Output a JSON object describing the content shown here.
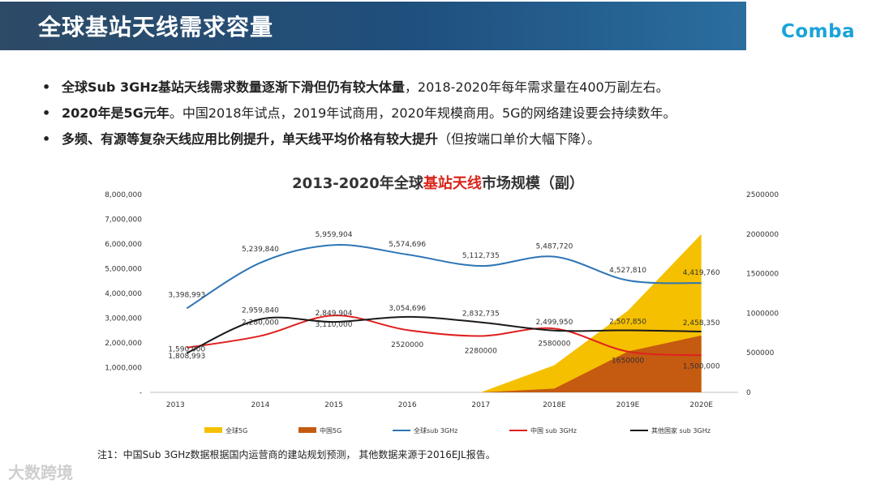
{
  "header": {
    "title": "全球基站天线需求容量",
    "logo": "Comba",
    "brand_color": "#1aa3d9"
  },
  "bullets": [
    {
      "bold": "全球Sub 3GHz基站天线需求数量逐渐下滑但仍有较大体量",
      "normal": "，2018-2020年每年需求量在400万副左右。"
    },
    {
      "bold": "2020年是5G元年",
      "normal": "。中国2018年试点，2019年试商用，2020年规模商用。5G的网络建设要会持续数年。"
    },
    {
      "bold": "多频、有源等复杂天线应用比例提升，单天线平均价格有较大提升",
      "normal": "（但按端口单价大幅下降）。"
    }
  ],
  "chart_title": {
    "pre": "2013-2020年全球",
    "highlight": "基站天线",
    "post": "市场规模（副）"
  },
  "chart_data": {
    "type": "line",
    "title": "2013-2020年全球基站天线市场规模（副）",
    "categories": [
      "2013",
      "2014",
      "2015",
      "2016",
      "2017",
      "2018E",
      "2019E",
      "2020E"
    ],
    "y_left": {
      "min": 0,
      "max": 8000000,
      "ticks": [
        "-",
        "1,000,000",
        "2,000,000",
        "3,000,000",
        "4,000,000",
        "5,000,000",
        "6,000,000",
        "7,000,000",
        "8,000,000"
      ]
    },
    "y_right": {
      "min": 0,
      "max": 2500000,
      "ticks": [
        "0",
        "500000",
        "1000000",
        "1500000",
        "2000000",
        "2500000"
      ]
    },
    "series": [
      {
        "name": "全球5G",
        "kind": "area",
        "axis": "left",
        "color": "#f5c000",
        "values": [
          null,
          null,
          null,
          null,
          0,
          1100000,
          3300000,
          6400000
        ]
      },
      {
        "name": "中国5G",
        "kind": "area",
        "axis": "left",
        "color": "#c55a11",
        "values": [
          null,
          null,
          null,
          null,
          0,
          150000,
          1650000,
          2300000
        ]
      },
      {
        "name": "全球sub 3GHz",
        "kind": "line",
        "axis": "left",
        "color": "#2e75b6",
        "values": [
          3398993,
          5239840,
          5959904,
          5574696,
          5112735,
          5487720,
          4527810,
          4419760
        ],
        "labels": [
          "3,398,993",
          "5,239,840",
          "5,959,904",
          "5,574,696",
          "5,112,735",
          "5,487,720",
          "4,527,810",
          "4,419,760"
        ]
      },
      {
        "name": "中国 sub 3GHz",
        "kind": "line",
        "axis": "left",
        "color": "#e02020",
        "values": [
          1808993,
          2280000,
          3110000,
          2520000,
          2280000,
          2580000,
          1650000,
          1500000
        ],
        "labels": [
          "1,808,993",
          "2,280,000",
          "3,110,000",
          "2520000",
          "2280000",
          "2580000",
          "1650000",
          "1,500,000"
        ]
      },
      {
        "name": "其他国家 sub 3GHz",
        "kind": "line",
        "axis": "left",
        "color": "#1a1a1a",
        "values": [
          1590000,
          2959840,
          2849904,
          3054696,
          2832735,
          2499950,
          2507850,
          2458350
        ],
        "labels": [
          "1,590,000",
          "2,959,840",
          "2,849,904",
          "3,054,696",
          "2,832,735",
          "2,499,950",
          "2,507,850",
          "2,458,350"
        ]
      }
    ],
    "legend_position": "bottom"
  },
  "note": "注1：中国Sub 3GHz数据根据国内运营商的建站规划预测， 其他数据来源于2016EJL报告。",
  "watermark": "大数跨境"
}
